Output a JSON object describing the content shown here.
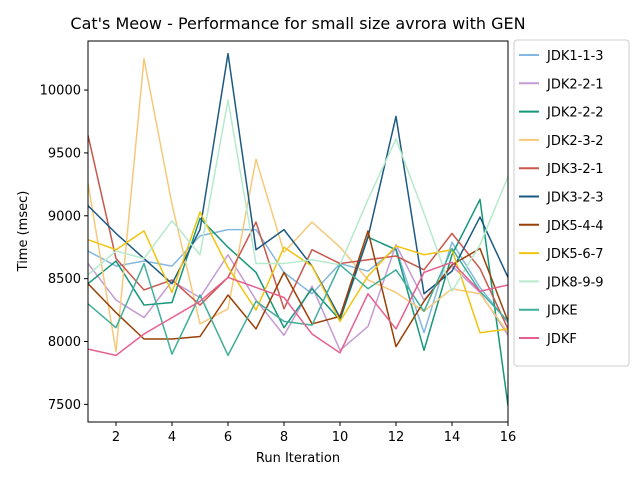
{
  "chart_data": {
    "type": "line",
    "title": "Cat's Meow - Performance for small size avrora with GEN",
    "xlabel": "Run Iteration",
    "ylabel": "Time (msec)",
    "xlim": [
      1,
      16
    ],
    "ylim": [
      7360,
      10390
    ],
    "xticks": [
      2,
      4,
      6,
      8,
      10,
      12,
      14,
      16
    ],
    "yticks": [
      7500,
      8000,
      8500,
      9000,
      9500,
      10000
    ],
    "grid": false,
    "legend_position": "outside-right",
    "x": [
      1,
      2,
      3,
      4,
      5,
      6,
      7,
      8,
      9,
      10,
      11,
      12,
      13,
      14,
      15,
      16
    ],
    "series": [
      {
        "name": "JDK1-1-3",
        "color": "#84b8e0",
        "values": [
          8720,
          8600,
          8640,
          8600,
          8840,
          8890,
          8890,
          8550,
          8380,
          8620,
          8560,
          8740,
          8070,
          8790,
          8430,
          8150
        ]
      },
      {
        "name": "JDK2-2-1",
        "color": "#c39bd3",
        "values": [
          8620,
          8330,
          8190,
          8480,
          8350,
          8690,
          8330,
          8050,
          8440,
          7930,
          8120,
          8770,
          8330,
          8600,
          8390,
          8050
        ]
      },
      {
        "name": "JDK2-2-2",
        "color": "#16967a",
        "values": [
          8460,
          8640,
          8290,
          8310,
          8980,
          8750,
          8550,
          8110,
          8420,
          8170,
          8830,
          8730,
          7930,
          8690,
          9130,
          7490
        ]
      },
      {
        "name": "JDK2-3-2",
        "color": "#f6c97a",
        "values": [
          9260,
          7920,
          10250,
          9090,
          8140,
          8260,
          9450,
          8710,
          8950,
          8750,
          8490,
          8390,
          8240,
          8420,
          8380,
          8070
        ]
      },
      {
        "name": "JDK3-2-1",
        "color": "#c9574c",
        "values": [
          9640,
          8660,
          8410,
          8490,
          8290,
          8510,
          8950,
          8260,
          8730,
          8620,
          8650,
          8680,
          8570,
          8860,
          8580,
          8100
        ]
      },
      {
        "name": "JDK3-2-3",
        "color": "#1d5a82",
        "values": [
          9080,
          8860,
          8660,
          8460,
          8890,
          10290,
          8730,
          8890,
          8600,
          8190,
          8830,
          9790,
          8380,
          8560,
          8990,
          8510
        ]
      },
      {
        "name": "JDK5-4-4",
        "color": "#9a4006",
        "values": [
          8460,
          8230,
          8020,
          8020,
          8040,
          8370,
          8100,
          8550,
          8140,
          8200,
          8880,
          7960,
          8320,
          8610,
          8740,
          8160
        ]
      },
      {
        "name": "JDK5-6-7",
        "color": "#f1c40f",
        "values": [
          8810,
          8730,
          8880,
          8390,
          9030,
          8590,
          8250,
          8750,
          8600,
          8160,
          8520,
          8760,
          8690,
          8730,
          8070,
          8100
        ]
      },
      {
        "name": "JDK8-9-9",
        "color": "#b6eacc",
        "values": [
          8530,
          8720,
          8660,
          8960,
          8690,
          9920,
          8620,
          8620,
          8650,
          8610,
          9130,
          9610,
          9020,
          8400,
          8770,
          9310
        ]
      },
      {
        "name": "JDKE",
        "color": "#3faf99",
        "values": [
          8300,
          8110,
          8620,
          7900,
          8370,
          7890,
          8320,
          8160,
          8130,
          8610,
          8420,
          8570,
          8240,
          8740,
          8400,
          8160
        ]
      },
      {
        "name": "JDKF",
        "color": "#e5608e",
        "values": [
          7940,
          7890,
          8060,
          8190,
          8320,
          8510,
          8430,
          8350,
          8060,
          7910,
          8380,
          8100,
          8550,
          8630,
          8400,
          8450
        ]
      }
    ]
  }
}
